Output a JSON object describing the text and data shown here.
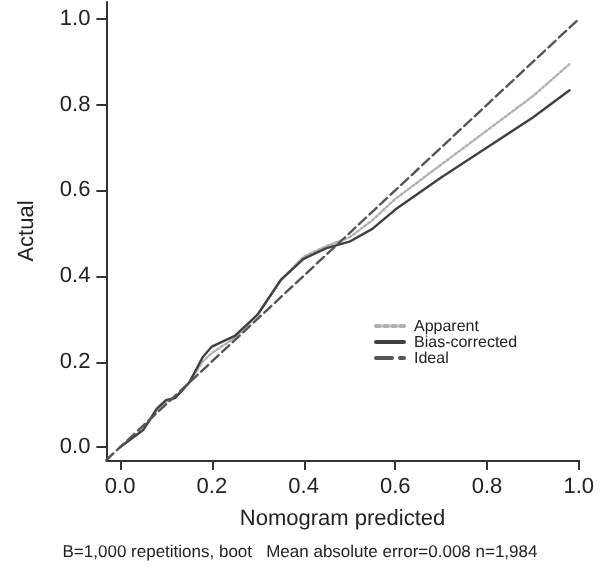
{
  "chart_data": {
    "type": "line",
    "xlabel": "Nomogram predicted",
    "ylabel": "Actual",
    "xlim": [
      -0.03,
      1.0
    ],
    "ylim": [
      -0.03,
      1.04
    ],
    "xticks": [
      {
        "value": 0,
        "label": "0.0"
      },
      0.2,
      0.4,
      0.6,
      0.8,
      {
        "value": 1,
        "label": "1.0"
      }
    ],
    "yticks": [
      {
        "value": 0,
        "label": "0.0"
      },
      0.2,
      0.4,
      0.6,
      0.8,
      {
        "value": 1,
        "label": "1.0"
      }
    ],
    "grid": false,
    "legend": "right",
    "marker": "none",
    "annotations": [
      "B=1,000 repetitions, boot   Mean absolute error=0.008 n=1,984"
    ],
    "series": [
      {
        "name": "Apparent",
        "color": "#b0b0b0",
        "line_style": "dotted",
        "x": [
          0.0,
          0.05,
          0.08,
          0.1,
          0.12,
          0.15,
          0.18,
          0.2,
          0.25,
          0.3,
          0.35,
          0.4,
          0.45,
          0.5,
          0.55,
          0.6,
          0.7,
          0.8,
          0.9,
          0.98
        ],
        "values": [
          0.0,
          0.04,
          0.085,
          0.105,
          0.115,
          0.15,
          0.2,
          0.22,
          0.255,
          0.31,
          0.39,
          0.445,
          0.47,
          0.49,
          0.53,
          0.58,
          0.66,
          0.74,
          0.82,
          0.895
        ]
      },
      {
        "name": "Bias-corrected",
        "color": "#404040",
        "line_style": "solid",
        "x": [
          0.0,
          0.05,
          0.08,
          0.1,
          0.12,
          0.15,
          0.18,
          0.2,
          0.25,
          0.3,
          0.35,
          0.4,
          0.45,
          0.5,
          0.55,
          0.6,
          0.7,
          0.8,
          0.9,
          0.98
        ],
        "values": [
          0.0,
          0.04,
          0.09,
          0.11,
          0.115,
          0.15,
          0.21,
          0.235,
          0.26,
          0.31,
          0.39,
          0.44,
          0.465,
          0.48,
          0.51,
          0.555,
          0.63,
          0.7,
          0.77,
          0.834
        ]
      },
      {
        "name": "Ideal",
        "color": "#555555",
        "line_style": "dashed",
        "x": [
          -0.03,
          1.0
        ],
        "values": [
          -0.03,
          1.0
        ]
      }
    ]
  }
}
